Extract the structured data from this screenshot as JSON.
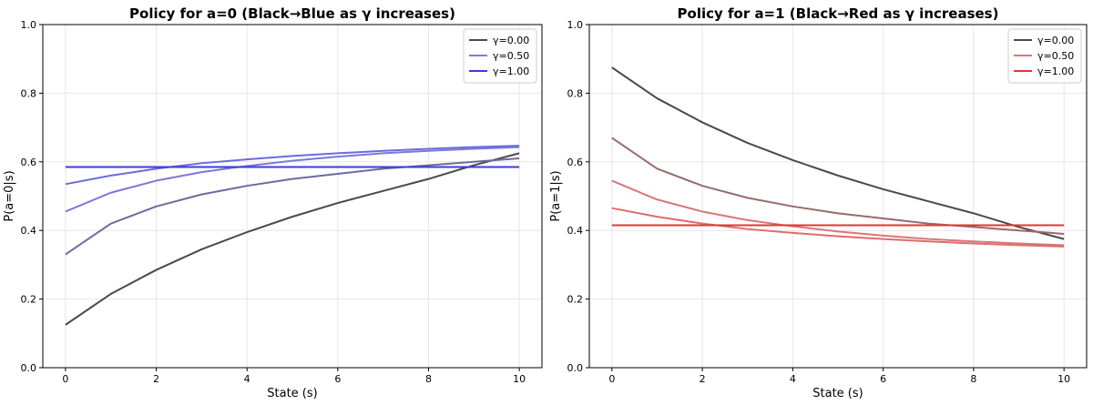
{
  "chart_data": [
    {
      "type": "line",
      "title": "Policy for a=0 (Black→Blue as γ increases)",
      "xlabel": "State (s)",
      "ylabel": "P(a=0|s)",
      "xlim": [
        -0.5,
        10.5
      ],
      "ylim": [
        0.0,
        1.0
      ],
      "xticks": [
        "0",
        "2",
        "4",
        "6",
        "8",
        "10"
      ],
      "yticks": [
        "0.0",
        "0.2",
        "0.4",
        "0.6",
        "0.8",
        "1.0"
      ],
      "grid": true,
      "legend_position": "top-right",
      "x": [
        0,
        1,
        2,
        3,
        4,
        5,
        6,
        7,
        8,
        9,
        10
      ],
      "series": [
        {
          "name": "γ=0.00",
          "color": "#4a4a4a",
          "values": [
            0.125,
            0.215,
            0.285,
            0.345,
            0.395,
            0.44,
            0.48,
            0.515,
            0.55,
            0.59,
            0.625
          ],
          "in_legend": true
        },
        {
          "name": "",
          "color": "#6d6aa0",
          "values": [
            0.33,
            0.42,
            0.47,
            0.505,
            0.53,
            0.55,
            0.565,
            0.58,
            0.59,
            0.6,
            0.61
          ],
          "in_legend": false
        },
        {
          "name": "γ=0.50",
          "color": "#7b79db",
          "values": [
            0.455,
            0.51,
            0.545,
            0.57,
            0.588,
            0.603,
            0.615,
            0.625,
            0.632,
            0.638,
            0.643
          ],
          "in_legend": true
        },
        {
          "name": "",
          "color": "#6b6be0",
          "values": [
            0.535,
            0.56,
            0.58,
            0.596,
            0.607,
            0.617,
            0.625,
            0.632,
            0.638,
            0.643,
            0.647
          ],
          "in_legend": false
        },
        {
          "name": "γ=1.00",
          "color": "#3a3ed6",
          "values": [
            0.585,
            0.585,
            0.585,
            0.585,
            0.585,
            0.585,
            0.585,
            0.585,
            0.585,
            0.585,
            0.585
          ],
          "in_legend": true
        }
      ]
    },
    {
      "type": "line",
      "title": "Policy for a=1 (Black→Red as γ increases)",
      "xlabel": "State (s)",
      "ylabel": "P(a=1|s)",
      "xlim": [
        -0.5,
        10.5
      ],
      "ylim": [
        0.0,
        1.0
      ],
      "xticks": [
        "0",
        "2",
        "4",
        "6",
        "8",
        "10"
      ],
      "yticks": [
        "0.0",
        "0.2",
        "0.4",
        "0.6",
        "0.8",
        "1.0"
      ],
      "grid": true,
      "legend_position": "top-right",
      "x": [
        0,
        1,
        2,
        3,
        4,
        5,
        6,
        7,
        8,
        9,
        10
      ],
      "series": [
        {
          "name": "γ=0.00",
          "color": "#4a4a4a",
          "values": [
            0.875,
            0.785,
            0.715,
            0.655,
            0.605,
            0.56,
            0.52,
            0.485,
            0.45,
            0.41,
            0.375
          ],
          "in_legend": true
        },
        {
          "name": "",
          "color": "#9a6a6a",
          "values": [
            0.67,
            0.58,
            0.53,
            0.495,
            0.47,
            0.45,
            0.435,
            0.42,
            0.41,
            0.4,
            0.39
          ],
          "in_legend": false
        },
        {
          "name": "γ=0.50",
          "color": "#d97777",
          "values": [
            0.545,
            0.49,
            0.455,
            0.43,
            0.412,
            0.397,
            0.385,
            0.375,
            0.368,
            0.362,
            0.357
          ],
          "in_legend": true
        },
        {
          "name": "",
          "color": "#e06b6b",
          "values": [
            0.465,
            0.44,
            0.42,
            0.404,
            0.393,
            0.383,
            0.375,
            0.368,
            0.362,
            0.357,
            0.353
          ],
          "in_legend": false
        },
        {
          "name": "γ=1.00",
          "color": "#d93a3a",
          "values": [
            0.415,
            0.415,
            0.415,
            0.415,
            0.415,
            0.415,
            0.415,
            0.415,
            0.415,
            0.415,
            0.415
          ],
          "in_legend": true
        }
      ]
    }
  ]
}
